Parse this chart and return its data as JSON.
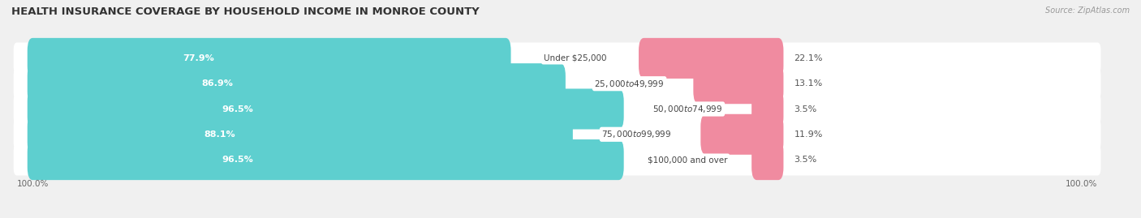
{
  "title": "HEALTH INSURANCE COVERAGE BY HOUSEHOLD INCOME IN MONROE COUNTY",
  "source": "Source: ZipAtlas.com",
  "categories": [
    "Under $25,000",
    "$25,000 to $49,999",
    "$50,000 to $74,999",
    "$75,000 to $99,999",
    "$100,000 and over"
  ],
  "with_coverage": [
    77.9,
    86.9,
    96.5,
    88.1,
    96.5
  ],
  "without_coverage": [
    22.1,
    13.1,
    3.5,
    11.9,
    3.5
  ],
  "coverage_color": "#5ecfcf",
  "no_coverage_color": "#f08ba0",
  "background_color": "#f0f0f0",
  "bar_bg_color": "#ffffff",
  "title_fontsize": 9.5,
  "label_fontsize": 8.0,
  "tick_fontsize": 7.5,
  "legend_fontsize": 8.0,
  "x_left_label": "100.0%",
  "x_right_label": "100.0%"
}
